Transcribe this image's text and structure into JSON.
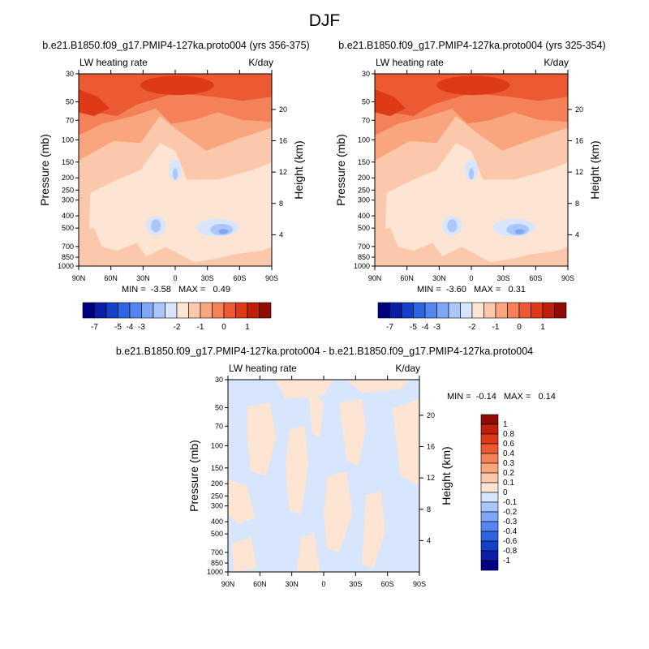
{
  "figure": {
    "title": "DJF"
  },
  "colors": {
    "abs": [
      "#00007f",
      "#0a1fa8",
      "#1440c8",
      "#2f63e0",
      "#5585f0",
      "#7fa6f5",
      "#aac6fa",
      "#d7e6fc",
      "#fde4d3",
      "#fcc8ab",
      "#f9a67f",
      "#f48158",
      "#ec5a33",
      "#df3a18",
      "#c0200a",
      "#8f0c05"
    ],
    "diff": [
      "#000080",
      "#0a1fa8",
      "#1440c8",
      "#2f63e0",
      "#5585f0",
      "#7fa6f5",
      "#aac6fa",
      "#d7e6fc",
      "#fde4d3",
      "#fcc8ab",
      "#f9a67f",
      "#f48158",
      "#ec5a33",
      "#df3a18",
      "#c0200a",
      "#8f0c05"
    ]
  },
  "panels": [
    {
      "id": "left",
      "title": "b.e21.B1850.f09_g17.PMIP4-127ka.proto004 (yrs 356-375)",
      "left_label": "LW heating rate",
      "right_label": "K/day",
      "minmax": "MIN =  -3.58   MAX =   0.49"
    },
    {
      "id": "right",
      "title": "b.e21.B1850.f09_g17.PMIP4-127ka.proto004 (yrs 325-354)",
      "left_label": "LW heating rate",
      "right_label": "K/day",
      "minmax": "MIN =  -3.60   MAX =   0.31"
    },
    {
      "id": "diff",
      "title": "b.e21.B1850.f09_g17.PMIP4-127ka.proto004 - b.e21.B1850.f09_g17.PMIP4-127ka.proto004",
      "left_label": "LW heating rate",
      "right_label": "K/day",
      "minmax": "MIN =  -0.14   MAX =   0.14"
    }
  ],
  "chart_data": [
    {
      "type": "heatmap",
      "title": "b.e21.B1850.f09_g17.PMIP4-127ka.proto004 (yrs 356-375)",
      "xlabel": "",
      "ylabel": "Pressure (mb)",
      "y2label": "Height (km)",
      "x_ticks": [
        "90N",
        "60N",
        "30N",
        "0",
        "30S",
        "60S",
        "90S"
      ],
      "y_ticks": [
        30,
        50,
        70,
        100,
        150,
        200,
        250,
        300,
        400,
        500,
        700,
        850,
        1000
      ],
      "y2_ticks": [
        20,
        16,
        12,
        8,
        4
      ],
      "colorbar_labels": [
        "-7",
        "-5",
        "-4",
        "-3",
        "-2",
        "-1",
        "0",
        "1"
      ],
      "min": -3.58,
      "max": 0.49
    },
    {
      "type": "heatmap",
      "title": "b.e21.B1850.f09_g17.PMIP4-127ka.proto004 (yrs 325-354)",
      "xlabel": "",
      "ylabel": "Pressure (mb)",
      "y2label": "Height (km)",
      "x_ticks": [
        "90N",
        "60N",
        "30N",
        "0",
        "30S",
        "60S",
        "90S"
      ],
      "y_ticks": [
        30,
        50,
        70,
        100,
        150,
        200,
        250,
        300,
        400,
        500,
        700,
        850,
        1000
      ],
      "y2_ticks": [
        20,
        16,
        12,
        8,
        4
      ],
      "colorbar_labels": [
        "-7",
        "-5",
        "-4",
        "-3",
        "-2",
        "-1",
        "0",
        "1"
      ],
      "min": -3.6,
      "max": 0.31
    },
    {
      "type": "heatmap",
      "title": "b.e21.B1850.f09_g17.PMIP4-127ka.proto004 - b.e21.B1850.f09_g17.PMIP4-127ka.proto004",
      "xlabel": "",
      "ylabel": "Pressure (mb)",
      "y2label": "Height (km)",
      "x_ticks": [
        "90N",
        "60N",
        "30N",
        "0",
        "30S",
        "60S",
        "90S"
      ],
      "y_ticks": [
        30,
        50,
        70,
        100,
        150,
        200,
        250,
        300,
        400,
        500,
        700,
        850,
        1000
      ],
      "y2_ticks": [
        20,
        16,
        12,
        8,
        4
      ],
      "colorbar_labels": [
        "1",
        "0.8",
        "0.6",
        "0.4",
        "0.3",
        "0.2",
        "0.1",
        "0",
        "-0.1",
        "-0.2",
        "-0.3",
        "-0.4",
        "-0.6",
        "-0.8",
        "-1"
      ],
      "min": -0.14,
      "max": 0.14
    }
  ]
}
